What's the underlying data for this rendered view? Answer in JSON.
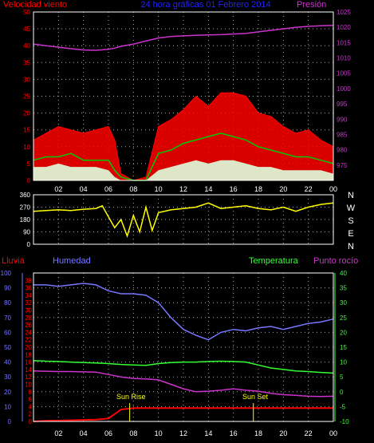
{
  "title": "24 hora gráficas 01 Febrero 2014",
  "colors": {
    "background": "#000000",
    "wind": "#ff0000",
    "wind_avg": "#00cc00",
    "wind_low": "#ddffdd",
    "pressure": "#cc33cc",
    "direction": "#ffff00",
    "rain": "#ff0000",
    "humidity": "#7777ff",
    "temperature": "#33ff33",
    "dewpoint": "#cc33cc",
    "grid": "#aaaaaa",
    "frame": "#ffffff",
    "title": "#2222ff",
    "sun": "#ffff00"
  },
  "x_ticks": [
    "02",
    "04",
    "06",
    "08",
    "10",
    "12",
    "14",
    "16",
    "18",
    "20",
    "22",
    "00"
  ],
  "chart_data": [
    {
      "type": "line",
      "name": "wind-pressure",
      "ylabel_left": "Velocidad viento",
      "ylabel_right": "Presión",
      "ylim_left": [
        0,
        50
      ],
      "yticks_left": [
        "0",
        "5",
        "10",
        "15",
        "20",
        "25",
        "30",
        "35",
        "40",
        "45",
        "50"
      ],
      "ylim_right": [
        970,
        1025
      ],
      "yticks_right": [
        "975",
        "980",
        "985",
        "990",
        "995",
        "1000",
        "1005",
        "1010",
        "1015",
        "1020",
        "1025"
      ],
      "x_hours": [
        0,
        1,
        2,
        3,
        4,
        5,
        6,
        6.5,
        7,
        8,
        9,
        10,
        11,
        12,
        13,
        14,
        15,
        16,
        17,
        18,
        19,
        20,
        21,
        22,
        23,
        24
      ],
      "series": [
        {
          "key": "gust",
          "values": [
            12,
            14,
            16,
            15,
            14,
            15,
            16,
            12,
            2,
            0,
            1,
            16,
            18,
            21,
            25,
            22,
            26,
            26,
            25,
            20,
            19,
            16,
            14,
            15,
            12,
            10
          ]
        },
        {
          "key": "avg",
          "values": [
            6,
            7,
            7,
            8,
            6,
            6,
            6,
            3,
            1,
            0,
            0,
            8,
            9,
            11,
            12,
            13,
            14,
            13,
            12,
            10,
            9,
            8,
            7,
            7,
            6,
            5
          ]
        },
        {
          "key": "low",
          "values": [
            4,
            4,
            5,
            4,
            4,
            4,
            3,
            1,
            0,
            0,
            0,
            3,
            4,
            5,
            6,
            5,
            6,
            6,
            5,
            4,
            4,
            3,
            3,
            3,
            3,
            2
          ]
        },
        {
          "key": "pressure",
          "values": [
            1014.5,
            1014,
            1013.5,
            1013,
            1012.6,
            1012.5,
            1012.8,
            1013.2,
            1013.8,
            1014.5,
            1015.5,
            1016.5,
            1017,
            1017.2,
            1017.4,
            1017.5,
            1017.6,
            1017.8,
            1018,
            1018.5,
            1019,
            1019.5,
            1020,
            1020.3,
            1020.5,
            1020.6
          ]
        }
      ]
    },
    {
      "type": "line",
      "name": "wind-direction",
      "ylim": [
        0,
        360
      ],
      "yticks": [
        "0",
        "90",
        "180",
        "270",
        "360"
      ],
      "direction_labels": [
        "N",
        "W",
        "S",
        "E",
        "N"
      ],
      "x_hours": [
        0,
        1,
        2,
        3,
        4,
        5,
        5.5,
        6,
        6.5,
        7,
        7.5,
        8,
        8.5,
        9,
        9.5,
        10,
        11,
        12,
        13,
        14,
        15,
        16,
        17,
        18,
        19,
        20,
        21,
        22,
        23,
        24
      ],
      "values": [
        240,
        245,
        250,
        245,
        255,
        260,
        280,
        200,
        120,
        180,
        60,
        210,
        90,
        270,
        100,
        230,
        250,
        260,
        270,
        300,
        260,
        270,
        280,
        260,
        250,
        270,
        240,
        270,
        290,
        300
      ]
    },
    {
      "type": "line",
      "name": "rain-humidity-temperature",
      "ylabel_rain": "Lluvia",
      "ylabel_humidity": "Humedad",
      "ylabel_temperature": "Temperatura",
      "ylabel_dewpoint": "Punto rocío",
      "ylim_rain": [
        0,
        100
      ],
      "yticks_rain": [
        "0",
        "10",
        "20",
        "30",
        "40",
        "50",
        "60",
        "70",
        "80",
        "90",
        "100"
      ],
      "ylim_humidity": [
        0,
        40
      ],
      "yticks_humidity": [
        "0",
        "2",
        "4",
        "6",
        "8",
        "10",
        "12",
        "14",
        "16",
        "18",
        "20",
        "22",
        "24",
        "26",
        "28",
        "30",
        "32",
        "34",
        "36",
        "38"
      ],
      "ylim_temperature": [
        -10,
        40
      ],
      "yticks_temperature": [
        "-10",
        "-5",
        "0",
        "5",
        "10",
        "15",
        "20",
        "25",
        "30",
        "35",
        "40"
      ],
      "annotations": [
        "Sun Rise",
        "Sun Set"
      ],
      "sunrise_hour": 7.7,
      "sunset_hour": 17.6,
      "x_hours": [
        0,
        1,
        2,
        3,
        4,
        5,
        6,
        7,
        8,
        9,
        10,
        11,
        12,
        13,
        14,
        15,
        16,
        17,
        18,
        19,
        20,
        21,
        22,
        23,
        24
      ],
      "series": [
        {
          "key": "humidity",
          "values": [
            92,
            92,
            91,
            92,
            93,
            92,
            88,
            86,
            86,
            85,
            80,
            70,
            62,
            58,
            55,
            60,
            62,
            61,
            63,
            64,
            62,
            64,
            66,
            67,
            69
          ]
        },
        {
          "key": "temperature",
          "values": [
            10.5,
            10.3,
            10.2,
            10,
            9.8,
            9.7,
            9.5,
            9.2,
            9,
            8.9,
            9.5,
            9.8,
            10,
            10,
            10.2,
            10.3,
            10.2,
            10,
            9,
            8,
            7.5,
            7,
            6.8,
            6.5,
            6.3
          ]
        },
        {
          "key": "dewpoint",
          "values": [
            7,
            6.9,
            6.8,
            6.8,
            6.7,
            6.6,
            5.8,
            5,
            4.5,
            4.3,
            4,
            2.5,
            1,
            0,
            0.2,
            0.5,
            1,
            0.5,
            0.2,
            -0.5,
            -1,
            -1.2,
            -1.5,
            -1.6,
            -1.5
          ]
        },
        {
          "key": "rain",
          "values": [
            0,
            0.5,
            0.6,
            0.8,
            1,
            1.2,
            2,
            8,
            9,
            9,
            9,
            9,
            9,
            9,
            9,
            9,
            9,
            9,
            9,
            9,
            9,
            9,
            9,
            9,
            9
          ]
        }
      ]
    }
  ]
}
